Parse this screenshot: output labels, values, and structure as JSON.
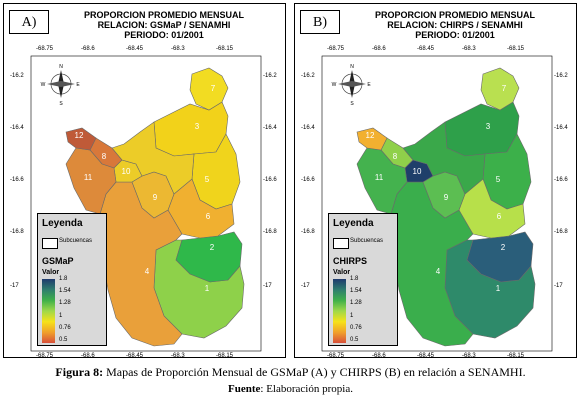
{
  "panels": [
    {
      "label": "A)",
      "title1": "PROPORCION PROMEDIO MENSUAL",
      "title2": "RELACION: GSMaP / SENAMHI",
      "title3": "PERIODO: 01/2001",
      "legend_title": "Leyenda",
      "legend_sub": "Subcuencas",
      "legend_var": "GSMaP",
      "legend_valor": "Valor",
      "region_colors": {
        "1": "#8ed14a",
        "2": "#2fb84a",
        "3": "#f2d21a",
        "4": "#e9a03a",
        "5": "#f0d41c",
        "6": "#f0b030",
        "7": "#f2dc22",
        "8": "#d8783a",
        "9": "#ecb832",
        "10": "#eccc28",
        "11": "#dd8a3a",
        "12": "#bf5a38"
      }
    },
    {
      "label": "B)",
      "title1": "PROPORCION PROMEDIO MENSUAL",
      "title2": "RELACION: CHIRPS / SENAMHI",
      "title3": "PERIODO: 01/2001",
      "legend_title": "Leyenda",
      "legend_sub": "Subcuencas",
      "legend_var": "CHIRPS",
      "legend_valor": "Valor",
      "region_colors": {
        "1": "#2e8a6a",
        "2": "#2a5e7a",
        "3": "#2ea04a",
        "4": "#3aae4c",
        "5": "#3cb04a",
        "6": "#b7e04a",
        "7": "#b9e050",
        "8": "#8fd04a",
        "9": "#5cbe52",
        "10": "#1f3f6a",
        "11": "#44b24e",
        "12": "#f2b030"
      }
    }
  ],
  "axes": {
    "x_ticks": [
      "-68.75",
      "-68.6",
      "-68.45",
      "-68.3",
      "-68.15"
    ],
    "y_ticks": [
      "-16.2",
      "-16.4",
      "-16.6",
      "-16.8",
      "-17"
    ]
  },
  "compass": {
    "n": "N",
    "s": "S",
    "e": "E",
    "w": "W"
  },
  "legend_ramp": {
    "labels": [
      "1.8",
      "1.54",
      "1.28",
      "1",
      "0.76",
      "0.5"
    ],
    "colors": [
      "#1e3a6e",
      "#2e7d6e",
      "#3fb04a",
      "#9fd84a",
      "#f6e21a",
      "#f0a02a",
      "#d8503a"
    ]
  },
  "region_labels": [
    "1",
    "2",
    "3",
    "4",
    "5",
    "6",
    "7",
    "8",
    "9",
    "10",
    "11",
    "12"
  ],
  "caption": {
    "bold": "Figura 8:",
    "text": " Mapas de Proporción Mensual de GSMaP (A) y CHIRPS (B) en relación a SENAMHI.",
    "source_label": "Fuente",
    "source_text": ": Elaboración propia."
  }
}
